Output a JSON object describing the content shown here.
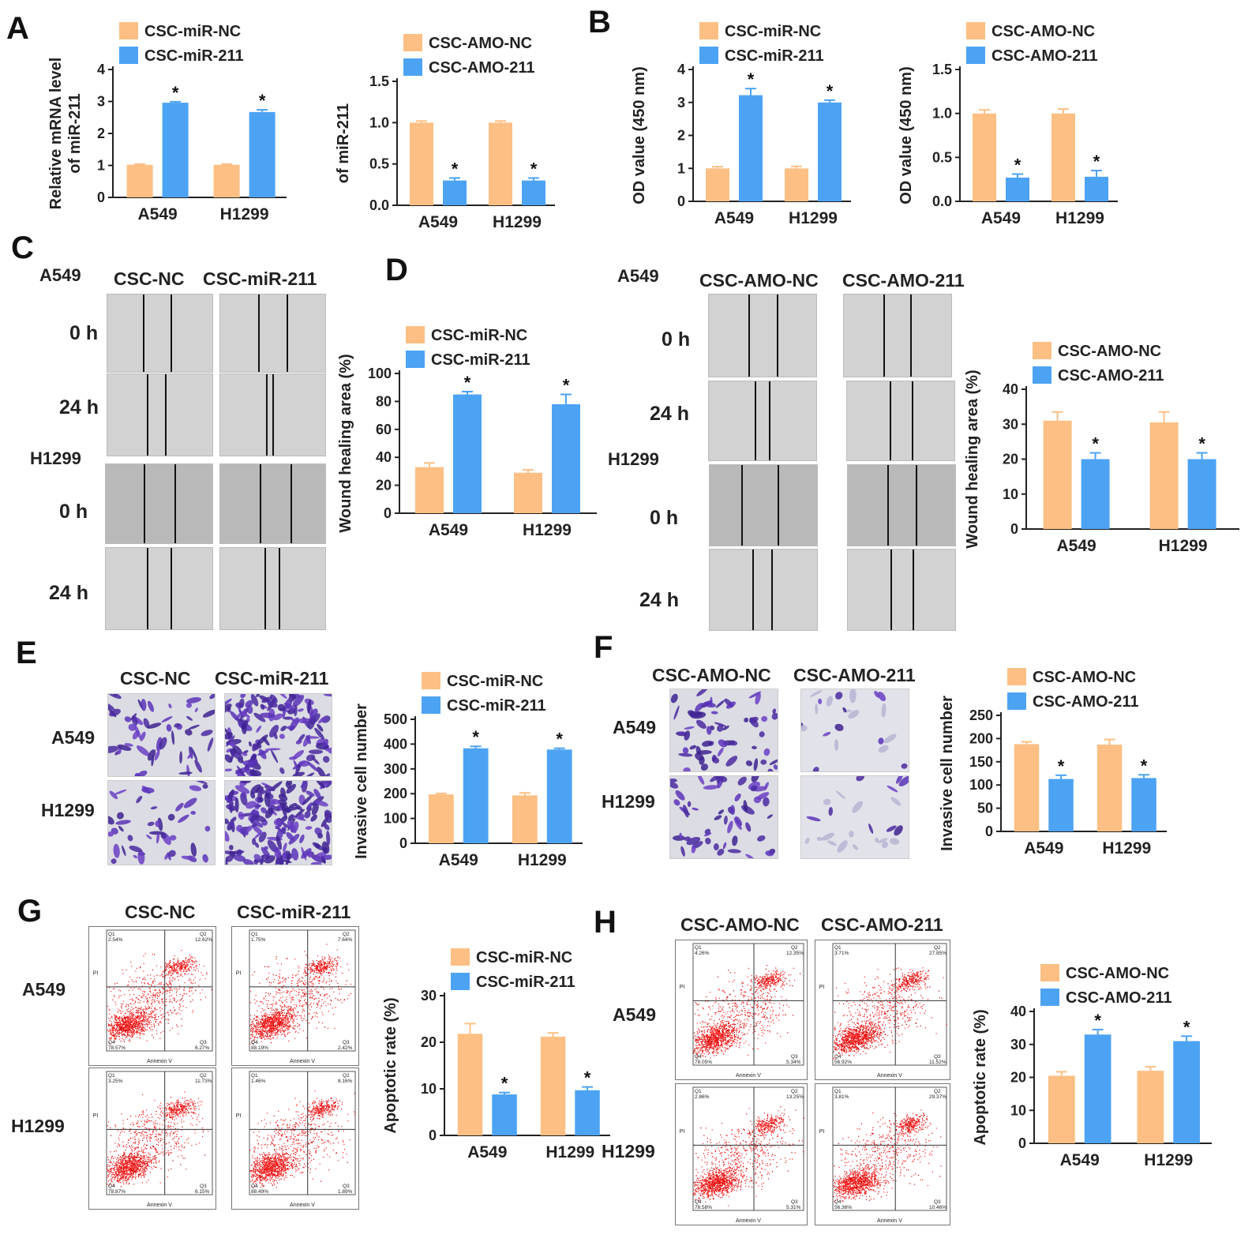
{
  "panels": {
    "A": "A",
    "B": "B",
    "C": "C",
    "D": "D",
    "E": "E",
    "F": "F",
    "G": "G",
    "H": "H"
  },
  "cells": {
    "a549": "A549",
    "h1299": "H1299"
  },
  "time": {
    "t0": "0 h",
    "t24": "24 h"
  },
  "groups": {
    "csc_nc": "CSC-NC",
    "csc_mir211": "CSC-miR-211",
    "csc_amo_nc": "CSC-AMO-NC",
    "csc_amo_211": "CSC-AMO-211"
  },
  "flow_axes": {
    "x": "Annexin V",
    "y": "PI"
  },
  "colors": {
    "nc": "#FDBF83",
    "treat": "#4DA3F3"
  },
  "chart_data": [
    {
      "id": "A1",
      "type": "bar",
      "title": "",
      "ylabel": "Relative mRNA level of miR-211",
      "categories": [
        "A549",
        "H1299"
      ],
      "series": [
        {
          "name": "CSC-miR-NC",
          "values": [
            1.02,
            1.02
          ],
          "errors": [
            0.02,
            0.02
          ]
        },
        {
          "name": "CSC-miR-211",
          "values": [
            2.96,
            2.67
          ],
          "errors": [
            0.03,
            0.07
          ]
        }
      ],
      "ylim": [
        0,
        4
      ],
      "yticks": [
        0,
        1,
        2,
        3,
        4
      ],
      "ytick_labels": [
        "0",
        "1",
        "2",
        "3",
        "4"
      ],
      "sig": [
        false,
        true
      ],
      "sig_mark": "*"
    },
    {
      "id": "A2",
      "type": "bar",
      "ylabel": "of miR-211",
      "categories": [
        "A549",
        "H1299"
      ],
      "series": [
        {
          "name": "CSC-AMO-NC",
          "values": [
            1.0,
            1.0
          ],
          "errors": [
            0.02,
            0.02
          ]
        },
        {
          "name": "CSC-AMO-211",
          "values": [
            0.3,
            0.3
          ],
          "errors": [
            0.03,
            0.03
          ]
        }
      ],
      "ylim": [
        0,
        1.5
      ],
      "yticks": [
        0,
        0.5,
        1.0,
        1.5
      ],
      "ytick_labels": [
        "0.0",
        "0.5",
        "1.0",
        "1.5"
      ],
      "sig": [
        false,
        true
      ],
      "sig_mark": "*"
    },
    {
      "id": "B1",
      "type": "bar",
      "ylabel": "OD value (450 nm)",
      "categories": [
        "A549",
        "H1299"
      ],
      "series": [
        {
          "name": "CSC-miR-NC",
          "values": [
            1.0,
            1.0
          ],
          "errors": [
            0.05,
            0.06
          ]
        },
        {
          "name": "CSC-miR-211",
          "values": [
            3.22,
            3.0
          ],
          "errors": [
            0.2,
            0.07
          ]
        }
      ],
      "ylim": [
        0,
        4
      ],
      "yticks": [
        0,
        1,
        2,
        3,
        4
      ],
      "ytick_labels": [
        "0",
        "1",
        "2",
        "3",
        "4"
      ],
      "sig": [
        false,
        true
      ],
      "sig_mark": "*"
    },
    {
      "id": "B2",
      "type": "bar",
      "ylabel": "OD value (450 nm)",
      "categories": [
        "A549",
        "H1299"
      ],
      "series": [
        {
          "name": "CSC-AMO-NC",
          "values": [
            1.0,
            1.0
          ],
          "errors": [
            0.04,
            0.05
          ]
        },
        {
          "name": "CSC-AMO-211",
          "values": [
            0.27,
            0.28
          ],
          "errors": [
            0.04,
            0.07
          ]
        }
      ],
      "ylim": [
        0,
        1.5
      ],
      "yticks": [
        0,
        0.5,
        1.0,
        1.5
      ],
      "ytick_labels": [
        "0.0",
        "0.5",
        "1.0",
        "1.5"
      ],
      "sig": [
        false,
        true
      ],
      "sig_mark": "*"
    },
    {
      "id": "D1",
      "type": "bar",
      "ylabel": "Wound healing area (%)",
      "categories": [
        "A549",
        "H1299"
      ],
      "series": [
        {
          "name": "CSC-miR-NC",
          "values": [
            33,
            29
          ],
          "errors": [
            3,
            2
          ]
        },
        {
          "name": "CSC-miR-211",
          "values": [
            85,
            78
          ],
          "errors": [
            2,
            7
          ]
        }
      ],
      "ylim": [
        0,
        100
      ],
      "yticks": [
        0,
        20,
        40,
        60,
        80,
        100
      ],
      "ytick_labels": [
        "0",
        "20",
        "40",
        "60",
        "80",
        "100"
      ],
      "sig": [
        false,
        true
      ],
      "sig_mark": "*"
    },
    {
      "id": "D2",
      "type": "bar",
      "ylabel": "Wound healing area (%)",
      "categories": [
        "A549",
        "H1299"
      ],
      "series": [
        {
          "name": "CSC-AMO-NC",
          "values": [
            31,
            30.5
          ],
          "errors": [
            2.5,
            3
          ]
        },
        {
          "name": "CSC-AMO-211",
          "values": [
            20,
            20
          ],
          "errors": [
            1.8,
            1.8
          ]
        }
      ],
      "ylim": [
        0,
        40
      ],
      "yticks": [
        0,
        10,
        20,
        30,
        40
      ],
      "ytick_labels": [
        "0",
        "10",
        "20",
        "30",
        "40"
      ],
      "sig": [
        false,
        true
      ],
      "sig_mark": "*"
    },
    {
      "id": "E1",
      "type": "bar",
      "ylabel": "Invasive cell number",
      "categories": [
        "A549",
        "H1299"
      ],
      "series": [
        {
          "name": "CSC-miR-NC",
          "values": [
            197,
            193
          ],
          "errors": [
            4,
            10
          ]
        },
        {
          "name": "CSC-miR-211",
          "values": [
            383,
            378
          ],
          "errors": [
            8,
            5
          ]
        }
      ],
      "ylim": [
        0,
        500
      ],
      "yticks": [
        0,
        100,
        200,
        300,
        400,
        500
      ],
      "ytick_labels": [
        "0",
        "100",
        "200",
        "300",
        "400",
        "500"
      ],
      "sig": [
        false,
        true
      ],
      "sig_mark": "*"
    },
    {
      "id": "F1",
      "type": "bar",
      "ylabel": "Invasive cell number",
      "categories": [
        "A549",
        "H1299"
      ],
      "series": [
        {
          "name": "CSC-AMO-NC",
          "values": [
            188,
            187
          ],
          "errors": [
            5,
            11
          ]
        },
        {
          "name": "CSC-AMO-211",
          "values": [
            113,
            115
          ],
          "errors": [
            8,
            7
          ]
        }
      ],
      "ylim": [
        0,
        250
      ],
      "yticks": [
        0,
        50,
        100,
        150,
        200,
        250
      ],
      "ytick_labels": [
        "0",
        "50",
        "100",
        "150",
        "200",
        "250"
      ],
      "sig": [
        false,
        true
      ],
      "sig_mark": "*"
    },
    {
      "id": "G1",
      "type": "bar",
      "ylabel": "Apoptotic rate (%)",
      "categories": [
        "A549",
        "H1299"
      ],
      "series": [
        {
          "name": "CSC-miR-NC",
          "values": [
            21.8,
            21.2
          ],
          "errors": [
            2.2,
            0.8
          ]
        },
        {
          "name": "CSC-miR-211",
          "values": [
            8.8,
            9.7
          ],
          "errors": [
            0.4,
            0.7
          ]
        }
      ],
      "ylim": [
        0,
        30
      ],
      "yticks": [
        0,
        10,
        20,
        30
      ],
      "ytick_labels": [
        "0",
        "10",
        "20",
        "30"
      ],
      "sig": [
        false,
        true
      ],
      "sig_mark": "*"
    },
    {
      "id": "H1",
      "type": "bar",
      "ylabel": "Apoptotic rate (%)",
      "categories": [
        "A549",
        "H1299"
      ],
      "series": [
        {
          "name": "CSC-AMO-NC",
          "values": [
            20.5,
            22
          ],
          "errors": [
            1.2,
            1.2
          ]
        },
        {
          "name": "CSC-AMO-211",
          "values": [
            33,
            31
          ],
          "errors": [
            1.5,
            1.5
          ]
        }
      ],
      "ylim": [
        0,
        40
      ],
      "yticks": [
        0,
        10,
        20,
        30,
        40
      ],
      "ytick_labels": [
        "0",
        "10",
        "20",
        "30",
        "40"
      ],
      "sig": [
        false,
        true
      ],
      "sig_mark": "*"
    }
  ],
  "flow_plots": [
    {
      "id": "G-a549-nc",
      "q1": "Q1",
      "q2": "Q2",
      "q3": "Q3",
      "q4": "Q4",
      "v1": "2.54%",
      "v2": "12.62%",
      "v3": "6.27%",
      "v4": "78.57%"
    },
    {
      "id": "G-a549-211",
      "q1": "Q1",
      "q2": "Q2",
      "q3": "Q3",
      "q4": "Q4",
      "v1": "1.75%",
      "v2": "7.64%",
      "v3": "2.42%",
      "v4": "88.19%"
    },
    {
      "id": "G-h1299-nc",
      "q1": "Q1",
      "q2": "Q2",
      "q3": "Q3",
      "q4": "Q4",
      "v1": "3.25%",
      "v2": "11.73%",
      "v3": "6.15%",
      "v4": "78.87%"
    },
    {
      "id": "G-h1299-211",
      "q1": "Q1",
      "q2": "Q2",
      "q3": "Q3",
      "q4": "Q4",
      "v1": "1.46%",
      "v2": "8.16%",
      "v3": "1.89%",
      "v4": "88.49%"
    },
    {
      "id": "H-a549-nc",
      "q1": "Q1",
      "q2": "Q2",
      "q3": "Q3",
      "q4": "Q4",
      "v1": "4.26%",
      "v2": "12.35%",
      "v3": "5.34%",
      "v4": "78.05%"
    },
    {
      "id": "H-a549-211",
      "q1": "Q1",
      "q2": "Q2",
      "q3": "Q3",
      "q4": "Q4",
      "v1": "3.71%",
      "v2": "27.85%",
      "v3": "11.52%",
      "v4": "56.92%"
    },
    {
      "id": "H-h1299-nc",
      "q1": "Q1",
      "q2": "Q2",
      "q3": "Q3",
      "q4": "Q4",
      "v1": "2.86%",
      "v2": "13.25%",
      "v3": "5.31%",
      "v4": "78.58%"
    },
    {
      "id": "H-h1299-211",
      "q1": "Q1",
      "q2": "Q2",
      "q3": "Q3",
      "q4": "Q4",
      "v1": "3.81%",
      "v2": "29.37%",
      "v3": "10.46%",
      "v4": "56.36%"
    }
  ]
}
